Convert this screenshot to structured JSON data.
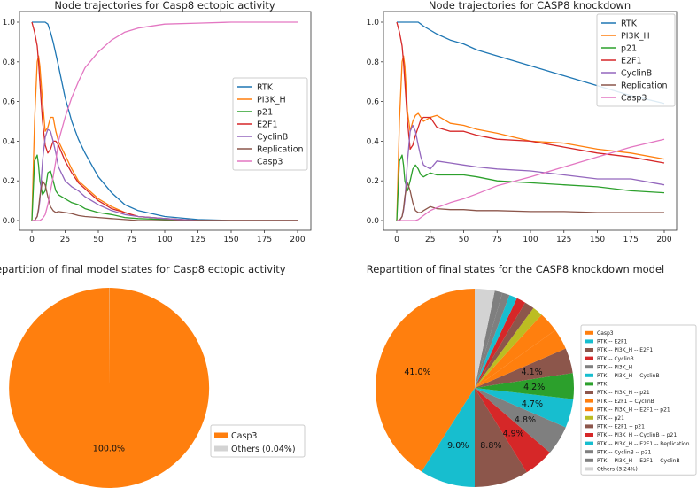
{
  "chart_data": [
    {
      "type": "line",
      "title": "Node trajectories for Casp8 ectopic activity",
      "xlim": [
        0,
        200
      ],
      "ylim": [
        0,
        1
      ],
      "xticks": [
        0,
        25,
        50,
        75,
        100,
        125,
        150,
        175,
        200
      ],
      "yticks": [
        0.0,
        0.2,
        0.4,
        0.6,
        0.8,
        1.0
      ],
      "legend": "center-right",
      "x": [
        0,
        2,
        4,
        5,
        6,
        8,
        10,
        12,
        14,
        16,
        18,
        20,
        25,
        30,
        35,
        40,
        50,
        60,
        70,
        80,
        100,
        125,
        150,
        200
      ],
      "series": [
        {
          "name": "RTK",
          "color": "#1f77b4",
          "values": [
            1,
            1,
            1,
            1,
            1,
            1,
            1,
            0.99,
            0.95,
            0.9,
            0.84,
            0.78,
            0.62,
            0.5,
            0.41,
            0.34,
            0.22,
            0.14,
            0.08,
            0.05,
            0.02,
            0.005,
            0,
            0
          ]
        },
        {
          "name": "PI3K_H",
          "color": "#ff7f0e",
          "values": [
            0,
            0.5,
            0.8,
            0.83,
            0.78,
            0.6,
            0.45,
            0.47,
            0.52,
            0.52,
            0.45,
            0.4,
            0.33,
            0.26,
            0.2,
            0.17,
            0.11,
            0.07,
            0.04,
            0.02,
            0.01,
            0,
            0,
            0
          ]
        },
        {
          "name": "p21",
          "color": "#2ca02c",
          "values": [
            0,
            0.3,
            0.33,
            0.28,
            0.2,
            0.13,
            0.15,
            0.24,
            0.25,
            0.2,
            0.15,
            0.13,
            0.11,
            0.09,
            0.08,
            0.06,
            0.04,
            0.03,
            0.015,
            0.01,
            0.005,
            0,
            0,
            0
          ]
        },
        {
          "name": "E2F1",
          "color": "#d62728",
          "values": [
            1,
            0.95,
            0.88,
            0.8,
            0.7,
            0.5,
            0.38,
            0.34,
            0.36,
            0.4,
            0.4,
            0.38,
            0.3,
            0.24,
            0.19,
            0.16,
            0.1,
            0.06,
            0.04,
            0.02,
            0.01,
            0,
            0,
            0
          ]
        },
        {
          "name": "CyclinB",
          "color": "#9467bd",
          "values": [
            0,
            0,
            0.02,
            0.05,
            0.1,
            0.3,
            0.42,
            0.46,
            0.45,
            0.4,
            0.34,
            0.27,
            0.2,
            0.17,
            0.15,
            0.12,
            0.08,
            0.05,
            0.03,
            0.02,
            0.01,
            0,
            0,
            0
          ]
        },
        {
          "name": "Replication",
          "color": "#8c564b",
          "values": [
            0,
            0,
            0.02,
            0.06,
            0.12,
            0.2,
            0.18,
            0.12,
            0.07,
            0.05,
            0.04,
            0.045,
            0.04,
            0.035,
            0.025,
            0.02,
            0.015,
            0.01,
            0.005,
            0,
            0,
            0,
            0,
            0
          ]
        },
        {
          "name": "Casp3",
          "color": "#e377c2",
          "values": [
            0,
            0,
            0,
            0,
            0,
            0.01,
            0.03,
            0.08,
            0.15,
            0.22,
            0.3,
            0.4,
            0.52,
            0.62,
            0.7,
            0.77,
            0.85,
            0.91,
            0.95,
            0.97,
            0.99,
            0.995,
            1,
            1
          ]
        }
      ]
    },
    {
      "type": "line",
      "title": "Node trajectories for CASP8 knockdown",
      "xlim": [
        0,
        200
      ],
      "ylim": [
        0,
        1
      ],
      "xticks": [
        0,
        25,
        50,
        75,
        100,
        125,
        150,
        175,
        200
      ],
      "yticks": [
        0.0,
        0.2,
        0.4,
        0.6,
        0.8,
        1.0
      ],
      "legend": "top-right",
      "x": [
        0,
        2,
        4,
        5,
        6,
        8,
        10,
        12,
        14,
        16,
        18,
        20,
        25,
        30,
        40,
        50,
        60,
        75,
        100,
        125,
        150,
        175,
        200
      ],
      "series": [
        {
          "name": "RTK",
          "color": "#1f77b4",
          "values": [
            1,
            1,
            1,
            1,
            1,
            1,
            1,
            1,
            1,
            1,
            0.99,
            0.98,
            0.96,
            0.94,
            0.91,
            0.89,
            0.86,
            0.83,
            0.78,
            0.73,
            0.68,
            0.63,
            0.59
          ]
        },
        {
          "name": "PI3K_H",
          "color": "#ff7f0e",
          "values": [
            0,
            0.5,
            0.8,
            0.83,
            0.78,
            0.55,
            0.45,
            0.5,
            0.53,
            0.54,
            0.52,
            0.5,
            0.52,
            0.53,
            0.49,
            0.48,
            0.46,
            0.44,
            0.4,
            0.39,
            0.36,
            0.34,
            0.31
          ]
        },
        {
          "name": "p21",
          "color": "#2ca02c",
          "values": [
            0,
            0.3,
            0.33,
            0.28,
            0.2,
            0.15,
            0.2,
            0.26,
            0.28,
            0.26,
            0.23,
            0.22,
            0.24,
            0.23,
            0.23,
            0.23,
            0.22,
            0.2,
            0.19,
            0.18,
            0.17,
            0.15,
            0.14
          ]
        },
        {
          "name": "E2F1",
          "color": "#d62728",
          "values": [
            1,
            0.95,
            0.88,
            0.8,
            0.7,
            0.5,
            0.36,
            0.38,
            0.43,
            0.47,
            0.51,
            0.52,
            0.52,
            0.47,
            0.45,
            0.45,
            0.43,
            0.41,
            0.4,
            0.37,
            0.34,
            0.32,
            0.29
          ]
        },
        {
          "name": "CyclinB",
          "color": "#9467bd",
          "values": [
            0,
            0,
            0.02,
            0.05,
            0.1,
            0.3,
            0.45,
            0.48,
            0.45,
            0.38,
            0.32,
            0.28,
            0.26,
            0.3,
            0.29,
            0.28,
            0.27,
            0.26,
            0.25,
            0.23,
            0.21,
            0.21,
            0.18
          ]
        },
        {
          "name": "Replication",
          "color": "#8c564b",
          "values": [
            0,
            0,
            0.02,
            0.06,
            0.12,
            0.19,
            0.15,
            0.09,
            0.05,
            0.04,
            0.04,
            0.05,
            0.07,
            0.06,
            0.055,
            0.055,
            0.05,
            0.05,
            0.045,
            0.045,
            0.04,
            0.04,
            0.04
          ]
        },
        {
          "name": "Casp3",
          "color": "#e377c2",
          "values": [
            0,
            0,
            0,
            0,
            0,
            0,
            0,
            0,
            0,
            0.005,
            0.015,
            0.025,
            0.05,
            0.065,
            0.09,
            0.11,
            0.135,
            0.175,
            0.22,
            0.27,
            0.32,
            0.37,
            0.41
          ]
        }
      ]
    },
    {
      "type": "pie",
      "title": "Repartition of final model states for Casp8 ectopic activity",
      "legend": "right",
      "slices": [
        {
          "name": "Casp3",
          "legend": "Casp3",
          "value": 99.96,
          "label": "100.0%",
          "color": "#ff7f0e"
        },
        {
          "name": "Others",
          "legend": "Others (0.04%)",
          "value": 0.04,
          "label": "",
          "color": "#d3d3d3"
        }
      ]
    },
    {
      "type": "pie",
      "title": "Repartition of final states for the CASP8 knockdown model",
      "legend": "right",
      "slices": [
        {
          "name": "Casp3",
          "legend": "Casp3",
          "value": 41.0,
          "label": "41.0%",
          "color": "#ff7f0e"
        },
        {
          "name": "RTK -- E2F1",
          "legend": "RTK -- E2F1",
          "value": 9.0,
          "label": "9.0%",
          "color": "#17becf"
        },
        {
          "name": "RTK -- PI3K_H -- E2F1",
          "legend": "RTK -- PI3K_H -- E2F1",
          "value": 8.8,
          "label": "8.8%",
          "color": "#8c564b"
        },
        {
          "name": "RTK -- CyclinB",
          "legend": "RTK -- CyclinB",
          "value": 4.9,
          "label": "4.9%",
          "color": "#d62728"
        },
        {
          "name": "RTK -- PI3K_H",
          "legend": "RTK -- PI3K_H",
          "value": 4.8,
          "label": "4.8%",
          "color": "#7f7f7f"
        },
        {
          "name": "RTK -- PI3K_H -- CyclinB",
          "legend": "RTK -- PI3K_H -- CyclinB",
          "value": 4.7,
          "label": "4.7%",
          "color": "#17becf"
        },
        {
          "name": "RTK",
          "legend": "RTK",
          "value": 4.2,
          "label": "4.2%",
          "color": "#2ca02c"
        },
        {
          "name": "RTK -- PI3K_H -- p21",
          "legend": "RTK -- PI3K_H -- p21",
          "value": 4.1,
          "label": "4.1%",
          "color": "#8c564b"
        },
        {
          "name": "RTK -- E2F1 -- CyclinB",
          "legend": "RTK -- E2F1 -- CyclinB",
          "value": 3.4,
          "label": "",
          "color": "#ff7f0e"
        },
        {
          "name": "RTK -- PI3K_H -- E2F1 -- p21",
          "legend": "RTK -- PI3K_H -- E2F1 -- p21",
          "value": 3.3,
          "label": "",
          "color": "#ff7f0e"
        },
        {
          "name": "RTK -- p21",
          "legend": "RTK -- p21",
          "value": 1.7,
          "label": "",
          "color": "#bcbd22"
        },
        {
          "name": "RTK -- E2F1 -- p21",
          "legend": "RTK -- E2F1 -- p21",
          "value": 1.6,
          "label": "",
          "color": "#8c564b"
        },
        {
          "name": "RTK -- PI3K_H -- CyclinB -- p21",
          "legend": "RTK -- PI3K_H -- CyclinB -- p21",
          "value": 1.5,
          "label": "",
          "color": "#d62728"
        },
        {
          "name": "RTK -- PI3K_H -- E2F1 -- Replication",
          "legend": "RTK -- PI3K_H -- E2F1 -- Replication",
          "value": 1.3,
          "label": "",
          "color": "#17becf"
        },
        {
          "name": "RTK -- CyclinB -- p21",
          "legend": "RTK -- CyclinB -- p21",
          "value": 1.2,
          "label": "",
          "color": "#7f7f7f"
        },
        {
          "name": "RTK -- PI3K_H -- E2F1 -- CyclinB",
          "legend": "RTK -- PI3K_H -- E2F1 -- CyclinB",
          "value": 1.26,
          "label": "",
          "color": "#7f7f7f"
        },
        {
          "name": "Others",
          "legend": "Others (3.24%)",
          "value": 3.24,
          "label": "",
          "color": "#d3d3d3"
        }
      ]
    }
  ]
}
